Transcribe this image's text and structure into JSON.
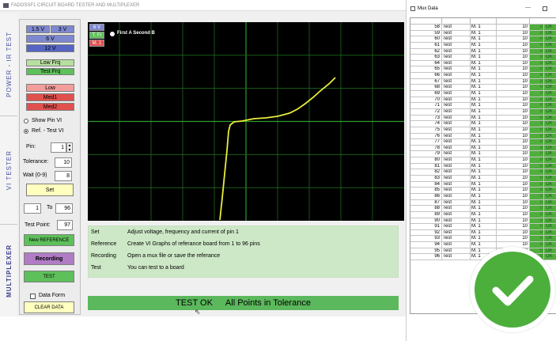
{
  "window": {
    "title": "FADOSSF1  CIRCUIT BOARD TESTER AND MULTIPLEXER"
  },
  "sidebar": {
    "tabs": [
      "POWER - IR TEST",
      "VI  TESTER",
      "MULTIPLEXER"
    ]
  },
  "power": {
    "voltage_buttons": [
      "1.5 V",
      "3 V",
      "6 V",
      "12 V"
    ],
    "frequency_buttons": [
      "Low Frq",
      "Test Frq"
    ],
    "current_buttons": [
      "Low",
      "Med1",
      "Med2"
    ]
  },
  "vi": {
    "show_pin_label": "Show Pin VI",
    "ref_test_label": "Ref. - Test VI",
    "selected_mode": "Ref. - Test VI",
    "pin_label": "Pin:",
    "pin_value": "1",
    "tolerance_label": "Tolerance:",
    "tolerance_value": "10",
    "wait_label": "Wait (0-9)",
    "wait_value": "8",
    "set_label": "Set",
    "range_from": "1",
    "range_to_label": "To",
    "range_to": "96",
    "test_point_label": "Test Point:",
    "test_point_value": "97"
  },
  "multiplexer": {
    "new_reference_label": "New REFERENCE",
    "recording_label": "Recording",
    "test_label": "TEST",
    "data_form_label": "Data Form",
    "data_form_checked": false,
    "clear_data_label": "CLEAR DATA"
  },
  "graph": {
    "tags": [
      "6 V",
      "T. Fr",
      "M. 1"
    ],
    "legend": "First A Second B",
    "colors": {
      "background": "#000000",
      "grid": "#1f6b1f",
      "axis": "#2e9a2e",
      "curve": "#e8ee3a"
    }
  },
  "info": {
    "rows": [
      {
        "key": "Set",
        "text": "Adjust voltage, frequency and current  of pin 1"
      },
      {
        "key": "Reference",
        "text": "Create VI Graphs of referance board from 1 to 96 pins"
      },
      {
        "key": "Recording",
        "text": "Open a mux file or save the referance"
      },
      {
        "key": "Test",
        "text": "You can test to a board"
      }
    ]
  },
  "status": {
    "result": "TEST OK",
    "message": "All Points in Tolerance"
  },
  "mux": {
    "title": "Mux Data",
    "minimize": "—",
    "rows": [
      [
        "58",
        "Test",
        "M. 1",
        "10",
        "0",
        "OK"
      ],
      [
        "59",
        "Test",
        "M. 1",
        "10",
        "0",
        "OK"
      ],
      [
        "60",
        "Test",
        "M. 1",
        "10",
        "0",
        "OK"
      ],
      [
        "61",
        "Test",
        "M. 1",
        "10",
        "0",
        "OK"
      ],
      [
        "62",
        "Test",
        "M. 1",
        "10",
        "0",
        "OK"
      ],
      [
        "63",
        "Test",
        "M. 1",
        "10",
        "0",
        "OK"
      ],
      [
        "64",
        "Test",
        "M. 1",
        "10",
        "0",
        "OK"
      ],
      [
        "65",
        "Test",
        "M. 1",
        "10",
        "0",
        "OK"
      ],
      [
        "66",
        "Test",
        "M. 1",
        "10",
        "0",
        "OK"
      ],
      [
        "67",
        "Test",
        "M. 1",
        "10",
        "0",
        "OK"
      ],
      [
        "68",
        "Test",
        "M. 1",
        "10",
        "0",
        "OK"
      ],
      [
        "69",
        "Test",
        "M. 1",
        "10",
        "0",
        "OK"
      ],
      [
        "70",
        "Test",
        "M. 1",
        "10",
        "0",
        "OK"
      ],
      [
        "71",
        "Test",
        "M. 1",
        "10",
        "0",
        "OK"
      ],
      [
        "72",
        "Test",
        "M. 1",
        "10",
        "0",
        "OK"
      ],
      [
        "73",
        "Test",
        "M. 1",
        "10",
        "0",
        "OK"
      ],
      [
        "74",
        "Test",
        "M. 1",
        "10",
        "0",
        "OK"
      ],
      [
        "75",
        "Test",
        "M. 1",
        "10",
        "0",
        "OK"
      ],
      [
        "76",
        "Test",
        "M. 1",
        "10",
        "0",
        "OK"
      ],
      [
        "77",
        "Test",
        "M. 1",
        "10",
        "0",
        "OK"
      ],
      [
        "78",
        "Test",
        "M. 1",
        "10",
        "0",
        "OK"
      ],
      [
        "79",
        "Test",
        "M. 1",
        "10",
        "0",
        "OK"
      ],
      [
        "80",
        "Test",
        "M. 1",
        "10",
        "0",
        "OK"
      ],
      [
        "81",
        "Test",
        "M. 1",
        "10",
        "0",
        "OK"
      ],
      [
        "82",
        "Test",
        "M. 1",
        "10",
        "0",
        "OK"
      ],
      [
        "83",
        "Test",
        "M. 1",
        "10",
        "0",
        "OK"
      ],
      [
        "84",
        "Test",
        "M. 1",
        "10",
        "0",
        "OK"
      ],
      [
        "85",
        "Test",
        "M. 1",
        "10",
        "0",
        "OK"
      ],
      [
        "86",
        "Test",
        "M. 1",
        "10",
        "0",
        "OK"
      ],
      [
        "87",
        "Test",
        "M. 1",
        "10",
        "0",
        "OK"
      ],
      [
        "88",
        "Test",
        "M. 1",
        "10",
        "0",
        "OK"
      ],
      [
        "89",
        "Test",
        "M. 1",
        "10",
        "0",
        "OK"
      ],
      [
        "90",
        "Test",
        "M. 1",
        "10",
        "0",
        "OK"
      ],
      [
        "91",
        "Test",
        "M. 1",
        "10",
        "0",
        "OK"
      ],
      [
        "92",
        "Test",
        "M. 1",
        "10",
        "0",
        "OK"
      ],
      [
        "93",
        "Test",
        "M. 1",
        "10",
        "0",
        "OK"
      ],
      [
        "94",
        "Test",
        "M. 1",
        "10",
        "0",
        "OK"
      ],
      [
        "95",
        "Test",
        "M. 1",
        "10",
        "0",
        "OK"
      ],
      [
        "96",
        "Test",
        "M. 1",
        "10",
        "0",
        "OK"
      ]
    ]
  }
}
